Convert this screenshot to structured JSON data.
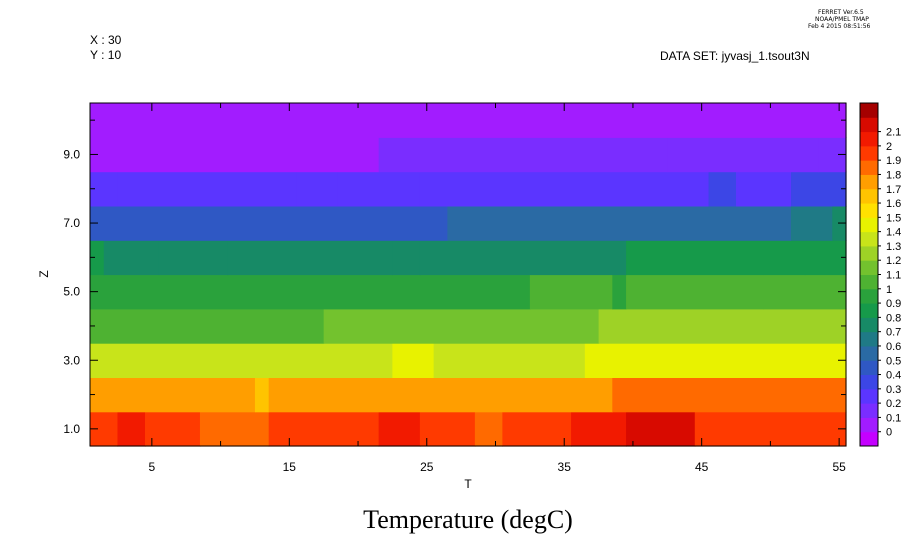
{
  "header": {
    "ferret_version": "FERRET  Ver.6.5",
    "ferret_org": "NOAA/PMEL TMAP",
    "ferret_date": "Feb  4 2015 08:51:56",
    "x_info": "X : 30",
    "y_info": "Y : 10",
    "dataset": "DATA SET: jyvasj_1.tsout3N"
  },
  "chart_data": {
    "type": "heatmap",
    "title": "Temperature (degC)",
    "xlabel": "T",
    "ylabel": "Z",
    "xlim": [
      0.5,
      55.5
    ],
    "ylim": [
      0.5,
      10.5
    ],
    "x_ticks": [
      5,
      15,
      25,
      35,
      45,
      55
    ],
    "y_ticks": [
      1.0,
      3.0,
      5.0,
      7.0,
      9.0
    ],
    "x_tick_labels": [
      "5",
      "15",
      "25",
      "35",
      "45",
      "55"
    ],
    "y_tick_labels": [
      "1.0",
      "3.0",
      "5.0",
      "7.0",
      "9.0"
    ],
    "colorbar": {
      "levels": [
        0,
        0.1,
        0.2,
        0.3,
        0.4,
        0.5,
        0.6,
        0.7,
        0.8,
        0.9,
        1,
        1.1,
        1.2,
        1.3,
        1.4,
        1.5,
        1.6,
        1.7,
        1.8,
        1.9,
        2,
        2.1
      ],
      "labels": [
        "0",
        "0.1",
        "0.2",
        "0.3",
        "0.4",
        "0.5",
        "0.6",
        "0.7",
        "0.8",
        "0.9",
        "1",
        "1.1",
        "1.2",
        "1.3",
        "1.4",
        "1.5",
        "1.6",
        "1.7",
        "1.8",
        "1.9",
        "2",
        "2.1"
      ],
      "colors": [
        "#c400ff",
        "#a21cff",
        "#7a2dff",
        "#5b35ff",
        "#3c46e6",
        "#2f58c4",
        "#2a6aa4",
        "#1f7a86",
        "#178a66",
        "#169a4a",
        "#2aa23c",
        "#4eb232",
        "#73c22e",
        "#9ed226",
        "#c8e41a",
        "#e8f200",
        "#ffe100",
        "#ffc400",
        "#ff9e00",
        "#ff6a00",
        "#ff3a00",
        "#f21a00",
        "#d80a00",
        "#a50000"
      ]
    },
    "rows": [
      {
        "z": 1,
        "segments": [
          [
            0.5,
            2.5,
            1.9
          ],
          [
            2.5,
            4.5,
            2.05
          ],
          [
            4.5,
            8.5,
            1.9
          ],
          [
            8.5,
            13.5,
            1.85
          ],
          [
            13.5,
            21.5,
            1.9
          ],
          [
            21.5,
            24.5,
            2.0
          ],
          [
            24.5,
            28.5,
            1.9
          ],
          [
            28.5,
            30.5,
            1.8
          ],
          [
            30.5,
            35.5,
            1.9
          ],
          [
            35.5,
            39.5,
            2.0
          ],
          [
            39.5,
            44.5,
            2.1
          ],
          [
            44.5,
            55.5,
            1.95
          ]
        ]
      },
      {
        "z": 2,
        "segments": [
          [
            0.5,
            12.5,
            1.7
          ],
          [
            12.5,
            13.5,
            1.6
          ],
          [
            13.5,
            38.5,
            1.7
          ],
          [
            38.5,
            55.5,
            1.8
          ]
        ]
      },
      {
        "z": 3,
        "segments": [
          [
            0.5,
            22.5,
            1.35
          ],
          [
            22.5,
            25.5,
            1.45
          ],
          [
            25.5,
            36.5,
            1.35
          ],
          [
            36.5,
            55.5,
            1.45
          ]
        ]
      },
      {
        "z": 4,
        "segments": [
          [
            0.5,
            17.5,
            1.05
          ],
          [
            17.5,
            37.5,
            1.1
          ],
          [
            37.5,
            55.5,
            1.2
          ]
        ]
      },
      {
        "z": 5,
        "segments": [
          [
            0.5,
            32.5,
            0.95
          ],
          [
            32.5,
            38.5,
            1.0
          ],
          [
            38.5,
            39.5,
            0.95
          ],
          [
            39.5,
            49.5,
            1.0
          ],
          [
            49.5,
            55.5,
            1.05
          ]
        ]
      },
      {
        "z": 6,
        "segments": [
          [
            0.5,
            1.5,
            0.8
          ],
          [
            1.5,
            5.5,
            0.75
          ],
          [
            5.5,
            10.5,
            0.7
          ],
          [
            10.5,
            22.5,
            0.75
          ],
          [
            22.5,
            24.5,
            0.7
          ],
          [
            24.5,
            39.5,
            0.75
          ],
          [
            39.5,
            52.5,
            0.8
          ],
          [
            52.5,
            55.5,
            0.85
          ]
        ]
      },
      {
        "z": 7,
        "segments": [
          [
            0.5,
            1.5,
            0.4
          ],
          [
            1.5,
            26.5,
            0.45
          ],
          [
            26.5,
            51.5,
            0.55
          ],
          [
            51.5,
            54.5,
            0.65
          ],
          [
            54.5,
            55.5,
            0.7
          ]
        ]
      },
      {
        "z": 8,
        "segments": [
          [
            0.5,
            2.5,
            0.25
          ],
          [
            2.5,
            8.5,
            0.2
          ],
          [
            8.5,
            15.5,
            0.2
          ],
          [
            15.5,
            18.5,
            0.25
          ],
          [
            18.5,
            24.5,
            0.2
          ],
          [
            24.5,
            45.5,
            0.25
          ],
          [
            45.5,
            47.5,
            0.3
          ],
          [
            47.5,
            51.5,
            0.2
          ],
          [
            51.5,
            55.5,
            0.3
          ]
        ]
      },
      {
        "z": 9,
        "segments": [
          [
            0.5,
            21.5,
            0.05
          ],
          [
            21.5,
            42.5,
            0.1
          ],
          [
            42.5,
            53.5,
            0.15
          ],
          [
            53.5,
            55.5,
            0.1
          ]
        ]
      },
      {
        "z": 10,
        "segments": [
          [
            0.5,
            55.5,
            0.05
          ]
        ]
      }
    ]
  }
}
